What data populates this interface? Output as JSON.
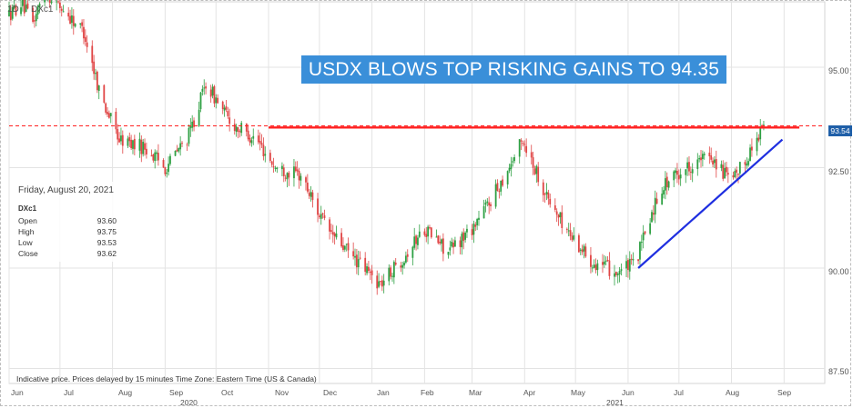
{
  "chart_data": {
    "type": "candlestick",
    "title": "USDX BLOWS TOP RISKING GAINS TO 94.35",
    "interval": "1D",
    "symbol": "DXc1",
    "ylim": [
      87.5,
      96.6
    ],
    "y_ticks": [
      "95.00",
      "92.50",
      "90.00",
      "87.50"
    ],
    "x_ticks": [
      "Jun",
      "Jul",
      "Aug",
      "Sep",
      "Oct",
      "Nov",
      "Dec",
      "Jan",
      "Feb",
      "Mar",
      "Apr",
      "May",
      "Jun",
      "Jul",
      "Aug",
      "Sep"
    ],
    "years": [
      "2020",
      "2021"
    ],
    "price_path": [
      [
        "2020-06-01",
        96.3
      ],
      [
        "2020-06-08",
        96.6
      ],
      [
        "2020-06-15",
        96.1
      ],
      [
        "2020-06-22",
        96.9
      ],
      [
        "2020-07-01",
        96.5
      ],
      [
        "2020-07-15",
        95.9
      ],
      [
        "2020-07-25",
        94.3
      ],
      [
        "2020-08-05",
        93.2
      ],
      [
        "2020-08-20",
        93.0
      ],
      [
        "2020-09-01",
        92.5
      ],
      [
        "2020-09-15",
        93.3
      ],
      [
        "2020-09-25",
        94.6
      ],
      [
        "2020-10-10",
        93.6
      ],
      [
        "2020-10-25",
        93.2
      ],
      [
        "2020-11-05",
        92.5
      ],
      [
        "2020-11-20",
        92.3
      ],
      [
        "2020-12-05",
        91.0
      ],
      [
        "2020-12-20",
        90.3
      ],
      [
        "2021-01-06",
        89.6
      ],
      [
        "2021-01-20",
        90.3
      ],
      [
        "2021-02-01",
        91.0
      ],
      [
        "2021-02-15",
        90.4
      ],
      [
        "2021-03-01",
        91.0
      ],
      [
        "2021-03-15",
        91.9
      ],
      [
        "2021-03-31",
        93.2
      ],
      [
        "2021-04-15",
        91.7
      ],
      [
        "2021-04-25",
        91.0
      ],
      [
        "2021-05-10",
        90.2
      ],
      [
        "2021-05-25",
        89.9
      ],
      [
        "2021-06-05",
        90.1
      ],
      [
        "2021-06-20",
        92.0
      ],
      [
        "2021-07-05",
        92.5
      ],
      [
        "2021-07-20",
        92.8
      ],
      [
        "2021-08-01",
        92.1
      ],
      [
        "2021-08-12",
        92.9
      ],
      [
        "2021-08-20",
        93.62
      ]
    ],
    "resistance_level": 93.54,
    "horizontal_line": 93.5,
    "support_trendline": [
      [
        "2021-06-07",
        90.0
      ],
      [
        "2021-08-31",
        93.2
      ]
    ],
    "last_price_label": "93.54",
    "ohlc_box": {
      "date": "Friday, August 20, 2021",
      "symbol": "DXc1",
      "rows": [
        {
          "label": "Open",
          "value": "93.60"
        },
        {
          "label": "High",
          "value": "93.75"
        },
        {
          "label": "Low",
          "value": "93.53"
        },
        {
          "label": "Close",
          "value": "93.62"
        }
      ]
    },
    "footnote": "Indicative price. Prices delayed by 15 minutes    Time Zone: Eastern Time (US & Canada)",
    "colors": {
      "up": "#2ea043",
      "down": "#e04545",
      "resistance": "#ff2020",
      "trendline": "#1f2fe0",
      "title_bg": "#3a8fd9",
      "grid": "#e3e3e3"
    }
  }
}
